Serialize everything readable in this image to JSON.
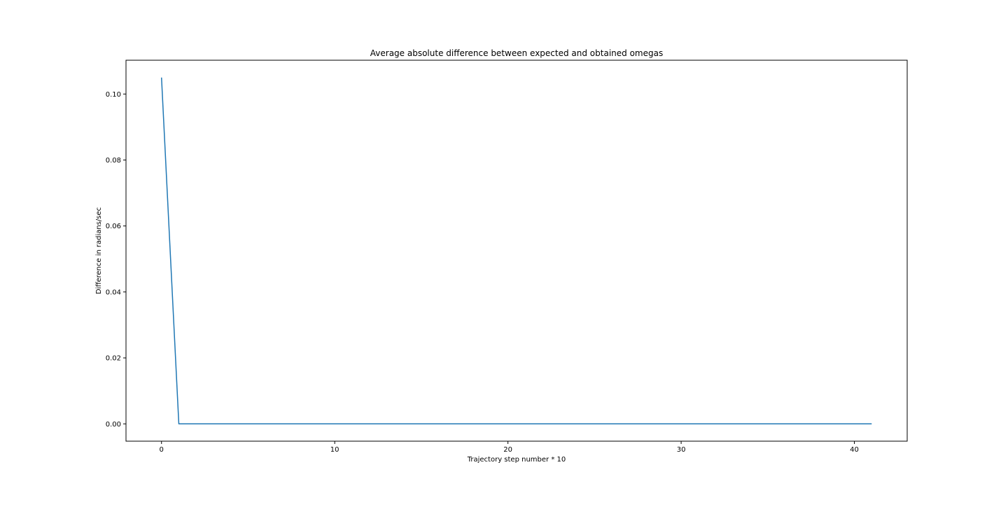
{
  "chart_data": {
    "type": "line",
    "title": "Average absolute difference between expected and obtained omegas",
    "xlabel": "Trajectory step number * 10",
    "ylabel": "Difference in radians/sec",
    "xlim": [
      -2.05,
      43.05
    ],
    "ylim": [
      -0.00525,
      0.11025
    ],
    "xticks": [
      0,
      10,
      20,
      30,
      40
    ],
    "xtick_labels": [
      "0",
      "10",
      "20",
      "30",
      "40"
    ],
    "yticks": [
      0.0,
      0.02,
      0.04,
      0.06,
      0.08,
      0.1
    ],
    "ytick_labels": [
      "0.00",
      "0.02",
      "0.04",
      "0.06",
      "0.08",
      "0.10"
    ],
    "grid": false,
    "legend": "none",
    "series": [
      {
        "color": "#1f77b4",
        "x": [
          0,
          1,
          2,
          3,
          4,
          5,
          6,
          7,
          8,
          9,
          10,
          11,
          12,
          13,
          14,
          15,
          16,
          17,
          18,
          19,
          20,
          21,
          22,
          23,
          24,
          25,
          26,
          27,
          28,
          29,
          30,
          31,
          32,
          33,
          34,
          35,
          36,
          37,
          38,
          39,
          40,
          41
        ],
        "y": [
          0.105,
          0.0,
          0.0,
          0.0,
          0.0,
          0.0,
          0.0,
          0.0,
          0.0,
          0.0,
          0.0,
          0.0,
          0.0,
          0.0,
          0.0,
          0.0,
          0.0,
          0.0,
          0.0,
          0.0,
          0.0,
          0.0,
          0.0,
          0.0,
          0.0,
          0.0,
          0.0,
          0.0,
          0.0,
          0.0,
          0.0,
          0.0,
          0.0,
          0.0,
          0.0,
          0.0,
          0.0,
          0.0,
          0.0,
          0.0,
          0.0,
          0.0
        ]
      }
    ]
  }
}
